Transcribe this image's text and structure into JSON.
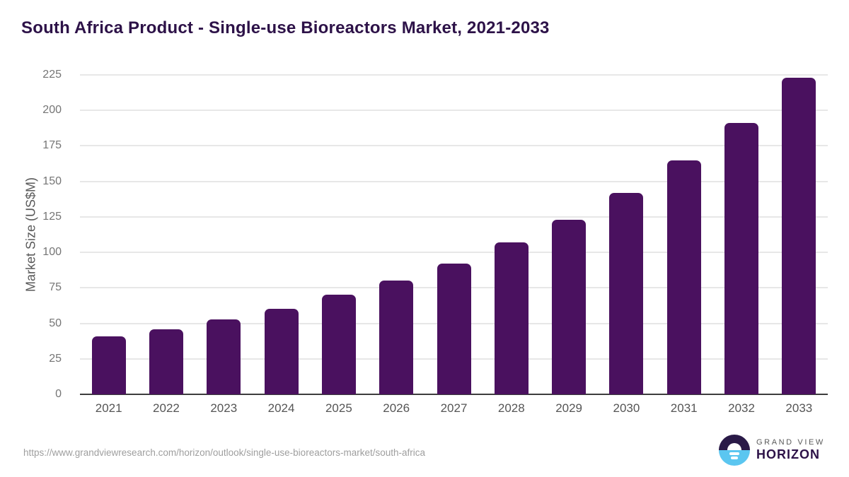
{
  "chart_data": {
    "type": "bar",
    "title": "South Africa Product - Single-use Bioreactors Market, 2021-2033",
    "categories": [
      "2021",
      "2022",
      "2023",
      "2024",
      "2025",
      "2026",
      "2027",
      "2028",
      "2029",
      "2030",
      "2031",
      "2032",
      "2033"
    ],
    "values": [
      41,
      46,
      53,
      60,
      70,
      80,
      92,
      107,
      123,
      142,
      165,
      191,
      223
    ],
    "xlabel": "",
    "ylabel": "Market Size (US$M)",
    "ylim": [
      0,
      225
    ],
    "ytick_step": 25,
    "grid": true,
    "legend": false,
    "bar_color": "#4A115F"
  },
  "colors": {
    "title": "#2D1248",
    "bar": "#4A115F",
    "gridline": "#e7e7e7",
    "axis_line": "#3d3d3d",
    "logo_dark": "#2A1A47",
    "logo_blue": "#5BC6F0"
  },
  "footer": {
    "source_url": "https://www.grandviewresearch.com/horizon/outlook/single-use-bioreactors-market/south-africa",
    "logo": {
      "top_text": "GRAND VIEW",
      "bottom_text": "HORIZON"
    }
  }
}
